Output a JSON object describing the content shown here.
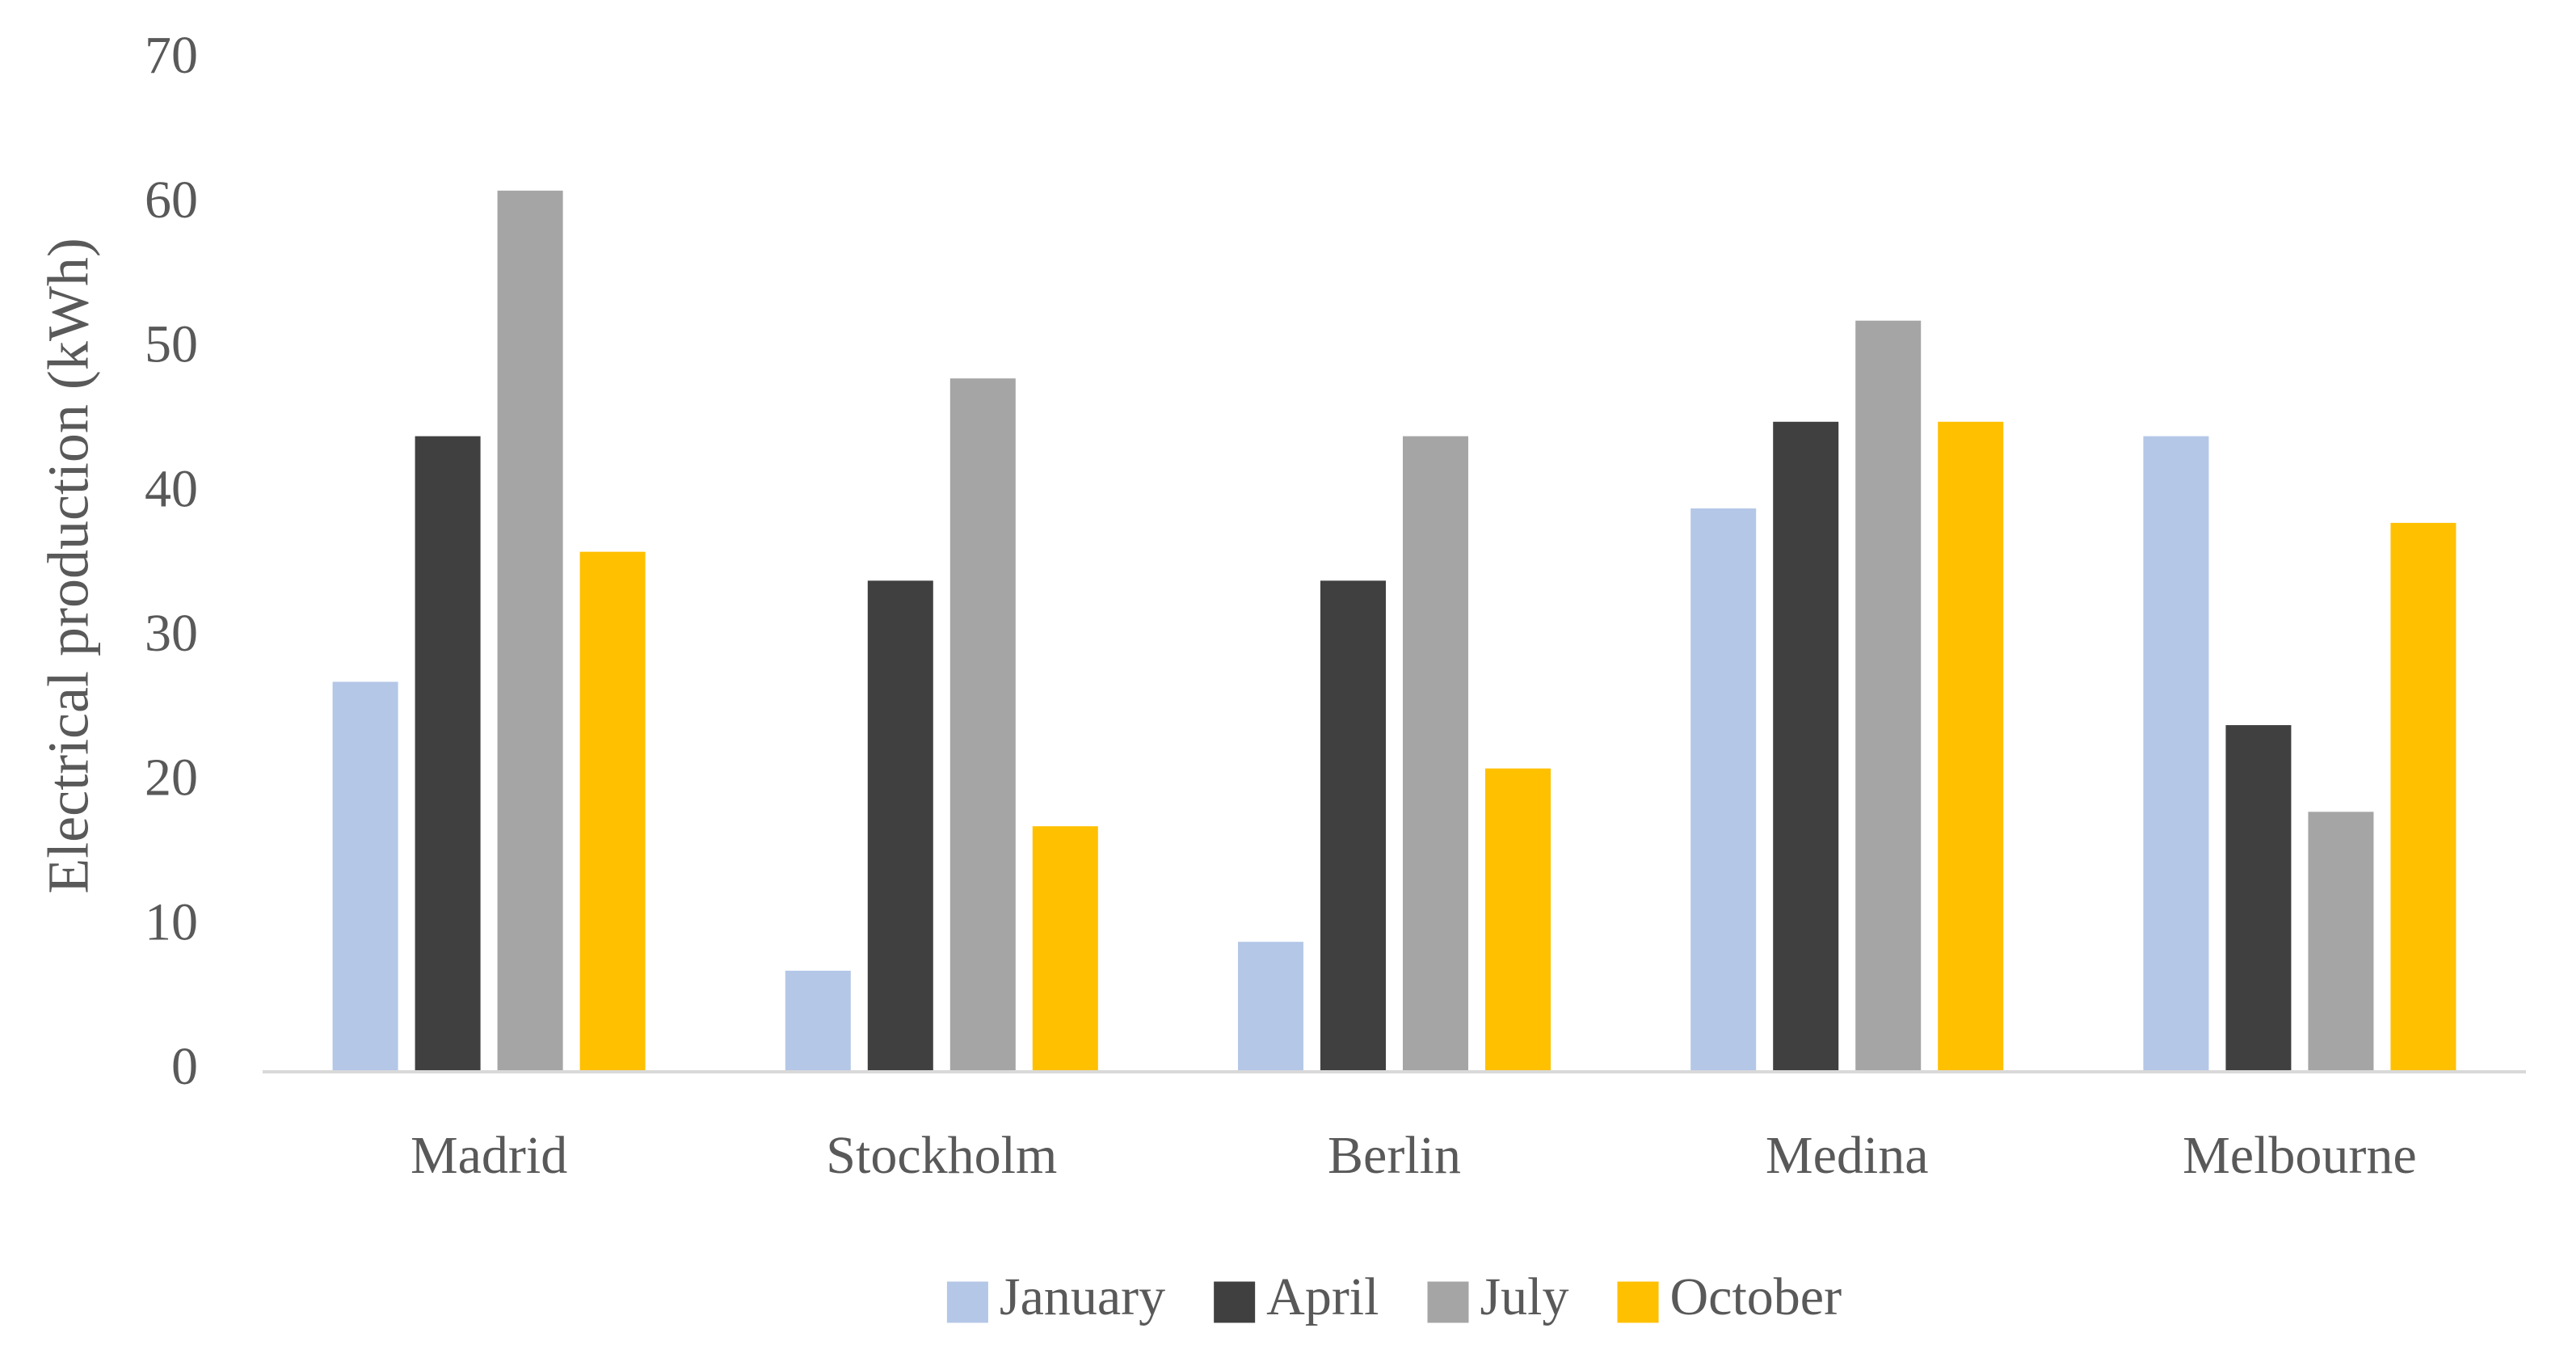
{
  "chart_data": {
    "type": "bar",
    "y_label": "Electrical production (kWh)",
    "categories": [
      "Madrid",
      "Stockholm",
      "Berlin",
      "Medina",
      "Melbourne"
    ],
    "series": [
      {
        "name": "January",
        "color": "#b4c7e7",
        "values": [
          27,
          7,
          9,
          39,
          44
        ]
      },
      {
        "name": "April",
        "color": "#404040",
        "values": [
          44,
          34,
          34,
          45,
          24
        ]
      },
      {
        "name": "July",
        "color": "#a5a5a5",
        "values": [
          61,
          48,
          44,
          52,
          18
        ]
      },
      {
        "name": "October",
        "color": "#ffc000",
        "values": [
          36,
          17,
          21,
          45,
          38
        ]
      }
    ],
    "ylim": [
      0,
      70
    ],
    "yticks": [
      0,
      10,
      20,
      30,
      40,
      50,
      60,
      70
    ],
    "grid": false,
    "legend": "bottom"
  }
}
